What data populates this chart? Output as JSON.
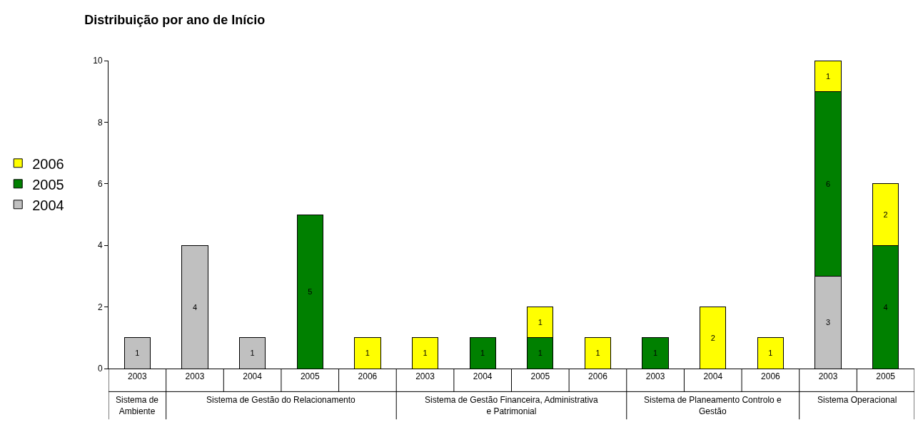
{
  "chart_data": {
    "type": "bar",
    "title": "Distribuição por ano de Início",
    "categories": [
      "2003",
      "2003",
      "2004",
      "2005",
      "2006",
      "2003",
      "2004",
      "2005",
      "2006",
      "2003",
      "2004",
      "2006",
      "2003",
      "2005"
    ],
    "series": [
      {
        "name": "2004",
        "color": "#c0c0c0",
        "values": [
          1,
          4,
          1,
          null,
          null,
          null,
          null,
          null,
          null,
          null,
          null,
          null,
          3,
          null
        ]
      },
      {
        "name": "2005",
        "color": "#008000",
        "values": [
          null,
          null,
          null,
          5,
          null,
          null,
          1,
          1,
          null,
          1,
          null,
          null,
          6,
          4
        ]
      },
      {
        "name": "2006",
        "color": "#ffff00",
        "values": [
          null,
          null,
          null,
          null,
          1,
          1,
          null,
          1,
          1,
          null,
          2,
          1,
          1,
          2
        ]
      }
    ],
    "stacked": true,
    "data_labels": true,
    "ylim": [
      0,
      10
    ],
    "yticks": [
      0,
      2,
      4,
      6,
      8,
      10
    ],
    "legend": "left",
    "annotations": [
      "Sistema de Ambiente",
      "Sistema de Gestão do Relacionamento",
      "Sistema de Gestão Financeira, Administrativa e Patrimonial",
      "Sistema de Planeamento Controlo e Gestão",
      "Sistema Operacional"
    ]
  }
}
